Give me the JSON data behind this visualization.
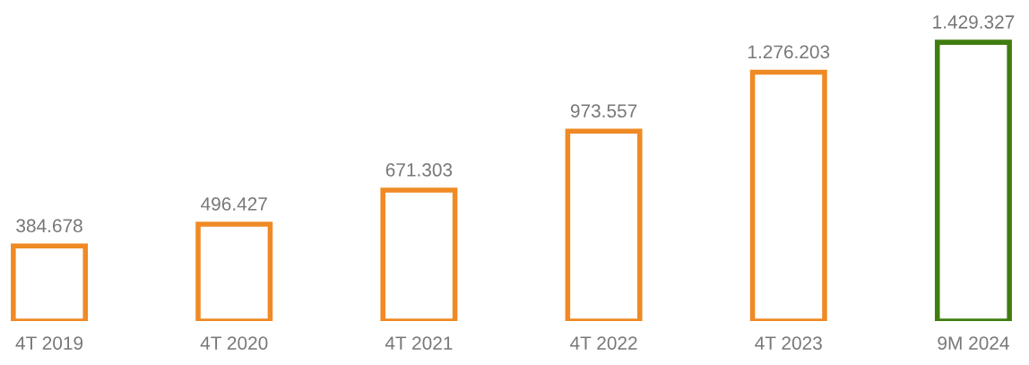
{
  "chart_data": {
    "type": "bar",
    "categories": [
      "4T 2019",
      "4T 2020",
      "4T 2021",
      "4T 2022",
      "4T 2023",
      "9M 2024"
    ],
    "values": [
      384678,
      496427,
      671303,
      973557,
      1276203,
      1429327
    ],
    "value_labels": [
      "384.678",
      "496.427",
      "671.303",
      "973.557",
      "1.276.203",
      "1.429.327"
    ],
    "colors": [
      "#ef8a25",
      "#ef8a25",
      "#ef8a25",
      "#ef8a25",
      "#ef8a25",
      "#3f7d0f"
    ]
  }
}
